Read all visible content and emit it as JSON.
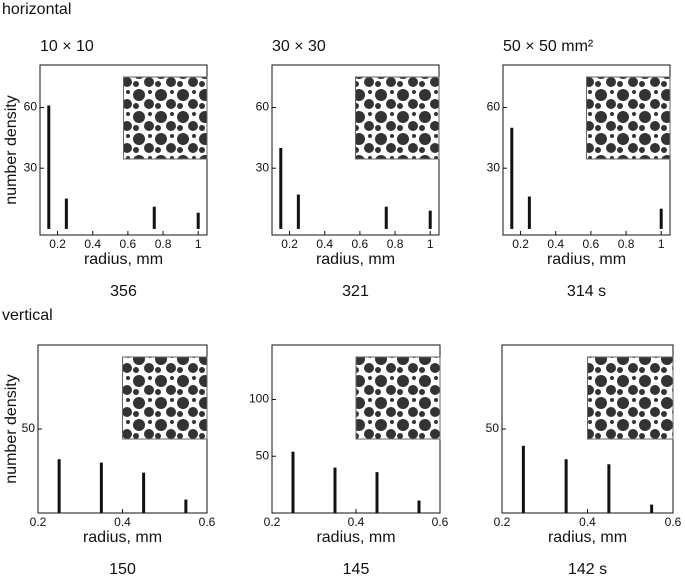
{
  "row_labels": [
    "horizontal",
    "vertical"
  ],
  "chart_data": [
    {
      "type": "bar",
      "title": "10 × 10",
      "x": [
        0.15,
        0.25,
        0.75,
        1
      ],
      "values": [
        61,
        15,
        11,
        8
      ],
      "color": "#111111",
      "xlim": [
        0.1,
        1.05
      ],
      "xticks": [
        0.2,
        0.4,
        0.6,
        0.8,
        1
      ],
      "ylim": [
        -3,
        81
      ],
      "yticks": [
        30,
        60
      ],
      "xlabel": "radius, mm",
      "ylabel": "number density",
      "annotation": "356"
    },
    {
      "type": "bar",
      "title": "30 × 30",
      "x": [
        0.15,
        0.25,
        0.75,
        1
      ],
      "values": [
        40,
        17,
        11,
        9
      ],
      "color": "#111111",
      "xlim": [
        0.1,
        1.05
      ],
      "xticks": [
        0.2,
        0.4,
        0.6,
        0.8,
        1
      ],
      "ylim": [
        -3,
        81
      ],
      "yticks": [
        30,
        60
      ],
      "xlabel": "radius, mm",
      "annotation": "321"
    },
    {
      "type": "bar",
      "title": "50 × 50 mm²",
      "x": [
        0.15,
        0.25,
        1
      ],
      "values": [
        50,
        16,
        10
      ],
      "color": "#111111",
      "xlim": [
        0.1,
        1.05
      ],
      "xticks": [
        0.2,
        0.4,
        0.6,
        0.8,
        1
      ],
      "ylim": [
        -3,
        81
      ],
      "yticks": [
        30,
        60
      ],
      "xlabel": "radius, mm",
      "annotation": "314 s"
    },
    {
      "type": "bar",
      "x": [
        0.25,
        0.35,
        0.45,
        0.55
      ],
      "values": [
        32,
        30,
        24,
        8
      ],
      "color": "#111111",
      "xlim": [
        0.2,
        0.6
      ],
      "xticks": [
        0.2,
        0.4,
        0.6
      ],
      "ylim": [
        0,
        100
      ],
      "yticks": [
        50
      ],
      "xlabel": "radius, mm",
      "ylabel": "number density",
      "annotation": "150"
    },
    {
      "type": "bar",
      "x": [
        0.25,
        0.35,
        0.45,
        0.55
      ],
      "values": [
        54,
        40,
        36,
        11
      ],
      "color": "#111111",
      "xlim": [
        0.2,
        0.6
      ],
      "xticks": [
        0.2,
        0.4,
        0.6
      ],
      "ylim": [
        0,
        148
      ],
      "yticks": [
        50,
        100
      ],
      "xlabel": "radius, mm",
      "annotation": "145"
    },
    {
      "type": "bar",
      "x": [
        0.25,
        0.35,
        0.45,
        0.55
      ],
      "values": [
        40,
        32,
        29,
        5
      ],
      "color": "#111111",
      "xlim": [
        0.2,
        0.6
      ],
      "xticks": [
        0.2,
        0.4,
        0.6
      ],
      "ylim": [
        0,
        100
      ],
      "yticks": [
        50
      ],
      "xlabel": "radius, mm",
      "annotation": "142 s"
    }
  ]
}
